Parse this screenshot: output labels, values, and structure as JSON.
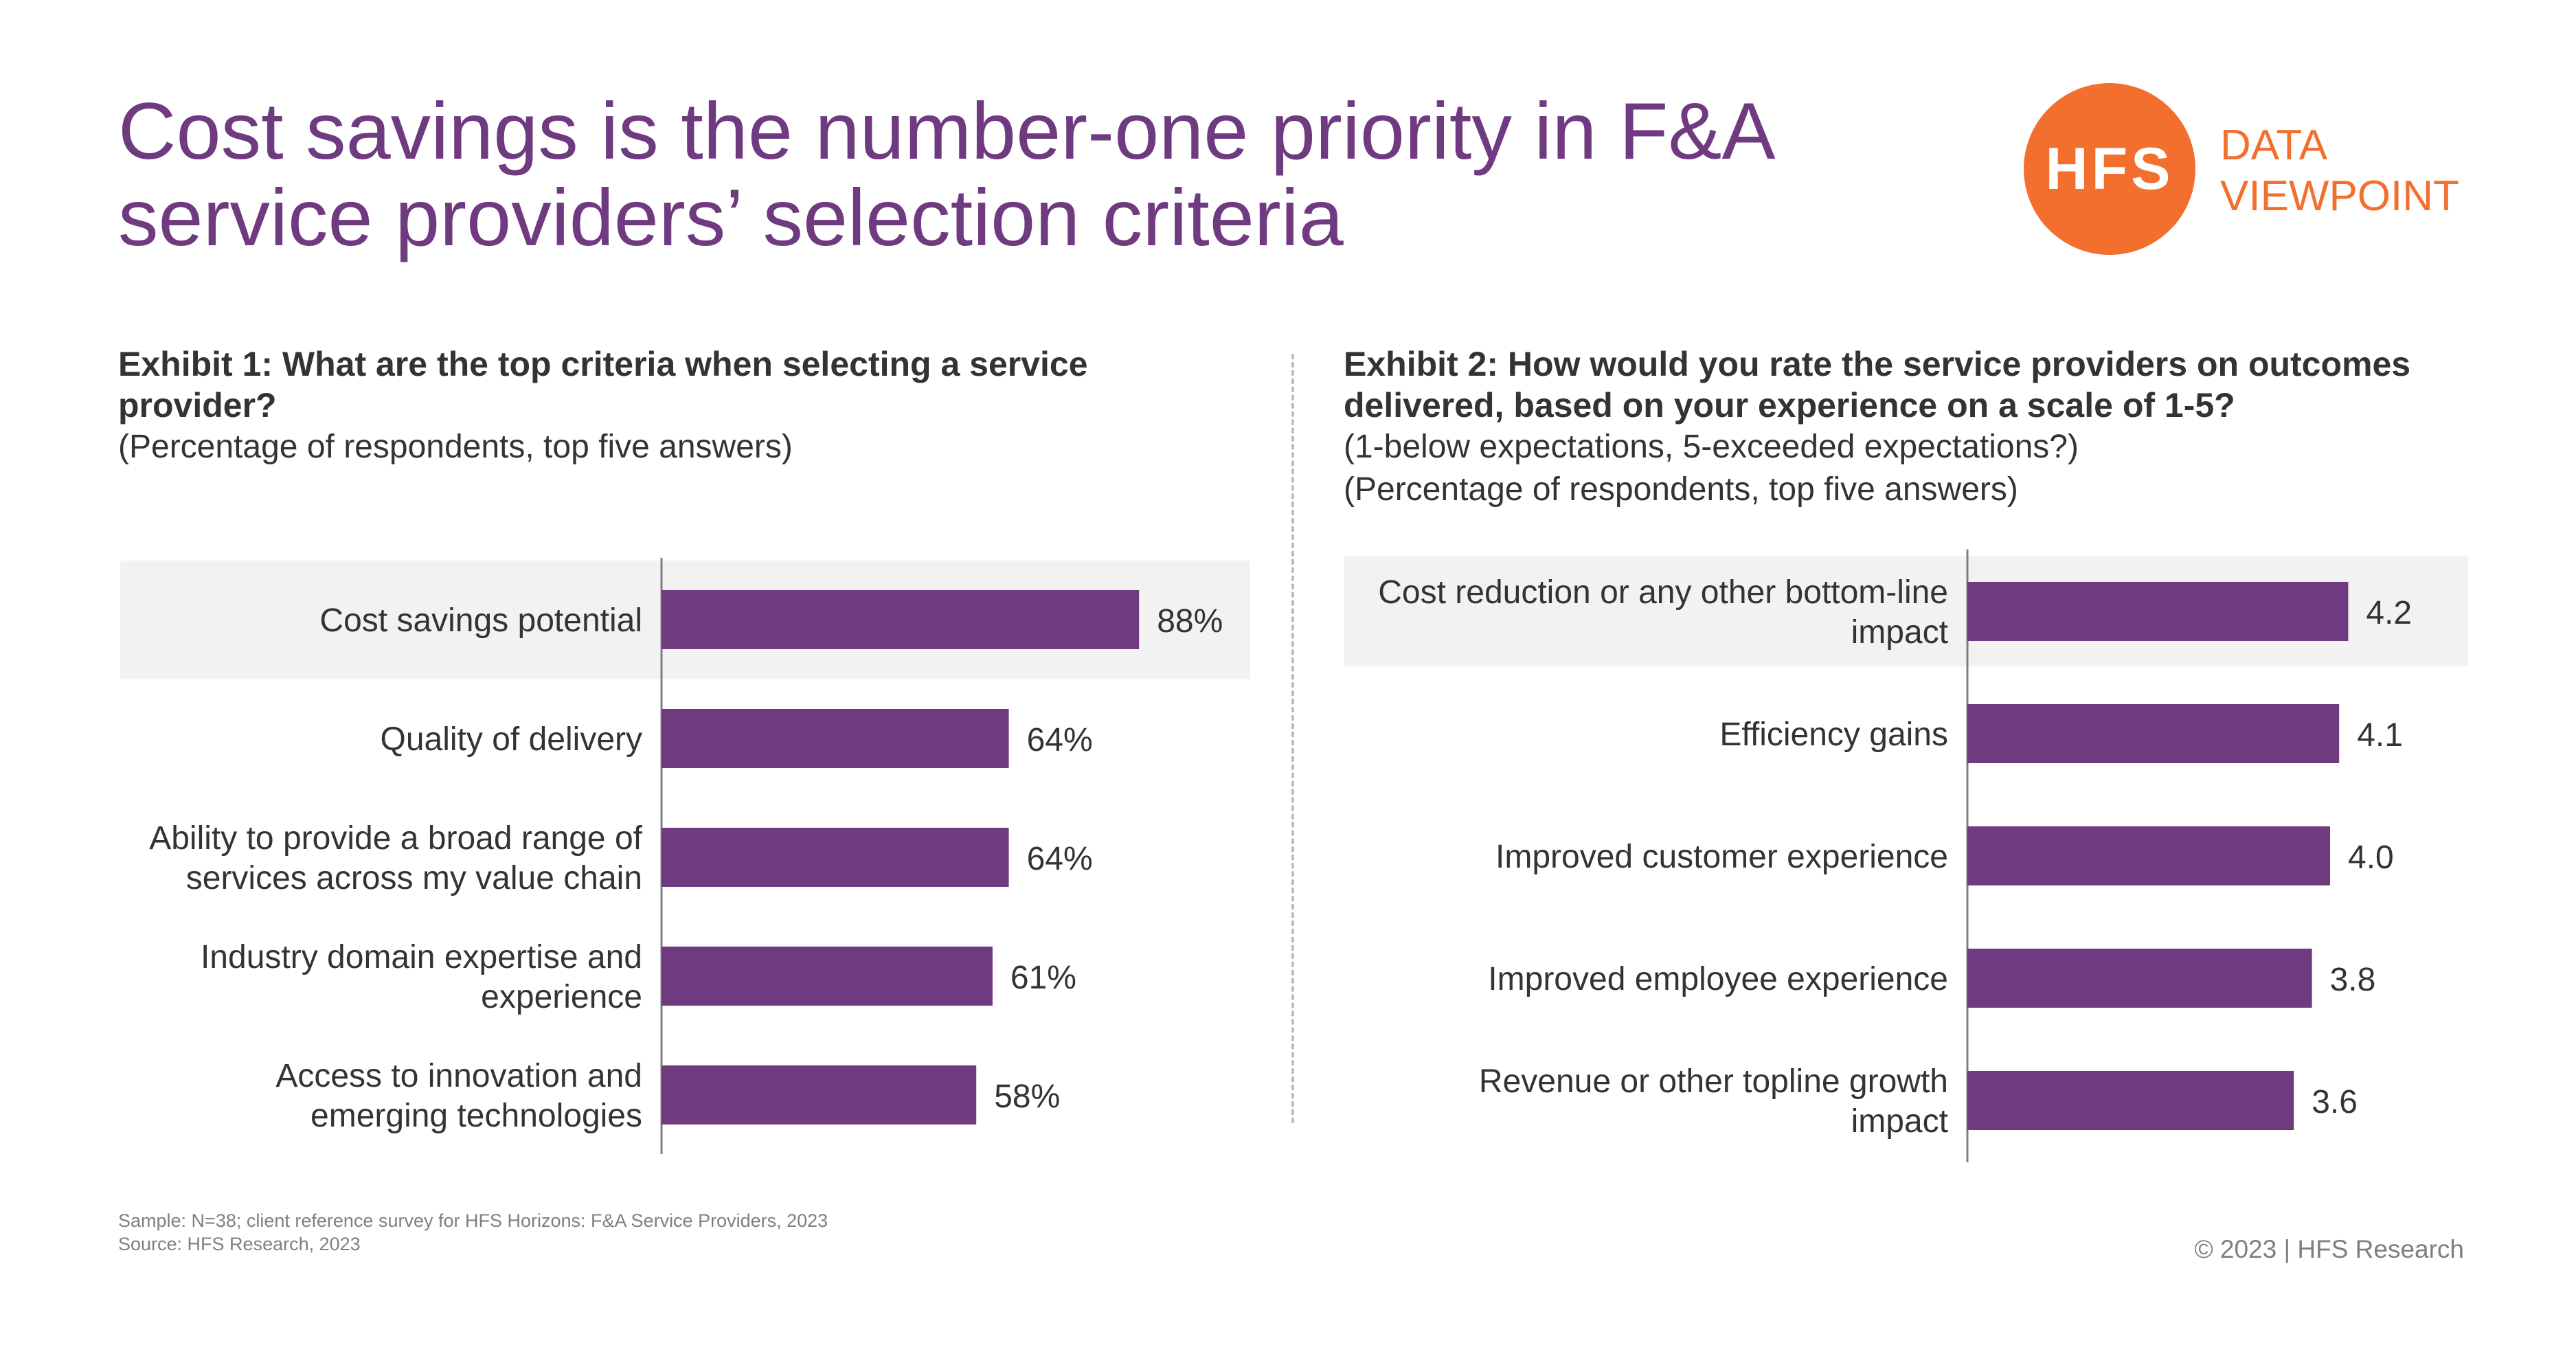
{
  "title": "Cost savings is the number-one priority in F&A service providers’ selection criteria",
  "logo": {
    "mark": "HFS",
    "tagline_line1": "DATA",
    "tagline_line2": "VIEWPOINT",
    "color": "#f26f2e"
  },
  "exhibit1": {
    "title": "Exhibit 1: What are the top criteria when selecting a service provider?",
    "subtitle": "(Percentage of respondents, top five answers)"
  },
  "exhibit2": {
    "title": "Exhibit 2: How would you rate the service providers on outcomes delivered, based on your experience on a scale of 1-5?",
    "subtitle1": "(1-below expectations, 5-exceeded expectations?)",
    "subtitle2": "(Percentage of respondents, top five answers)"
  },
  "chart_data": [
    {
      "type": "bar",
      "orientation": "horizontal",
      "categories": [
        [
          "Cost savings potential"
        ],
        [
          "Quality of delivery"
        ],
        [
          "Ability to provide a broad range of",
          "services across my value chain"
        ],
        [
          "Industry domain expertise and",
          "experience"
        ],
        [
          "Access to innovation and",
          "emerging technologies"
        ]
      ],
      "values": [
        88,
        64,
        64,
        61,
        58
      ],
      "value_labels": [
        "88%",
        "64%",
        "64%",
        "61%",
        "58%"
      ],
      "xlim": [
        0,
        100
      ],
      "highlight_index": 0,
      "bar_color": "#6f3a80",
      "highlight_color": "#f2f2f2"
    },
    {
      "type": "bar",
      "orientation": "horizontal",
      "categories": [
        [
          "Cost reduction or any other bottom-line",
          "impact"
        ],
        [
          "Efficiency gains"
        ],
        [
          "Improved customer experience"
        ],
        [
          "Improved employee experience"
        ],
        [
          "Revenue or other topline growth",
          "impact"
        ]
      ],
      "values": [
        4.2,
        4.1,
        4.0,
        3.8,
        3.6
      ],
      "value_labels": [
        "4.2",
        "4.1",
        "4.0",
        "3.8",
        "3.6"
      ],
      "xlim": [
        0,
        5
      ],
      "highlight_index": 0,
      "bar_color": "#6f3a80",
      "highlight_color": "#f2f2f2"
    }
  ],
  "footnote": {
    "line1": "Sample: N=38; client reference survey for HFS Horizons: F&A Service Providers, 2023",
    "line2": "Source: HFS Research, 2023"
  },
  "copyright": "© 2023 | HFS Research"
}
